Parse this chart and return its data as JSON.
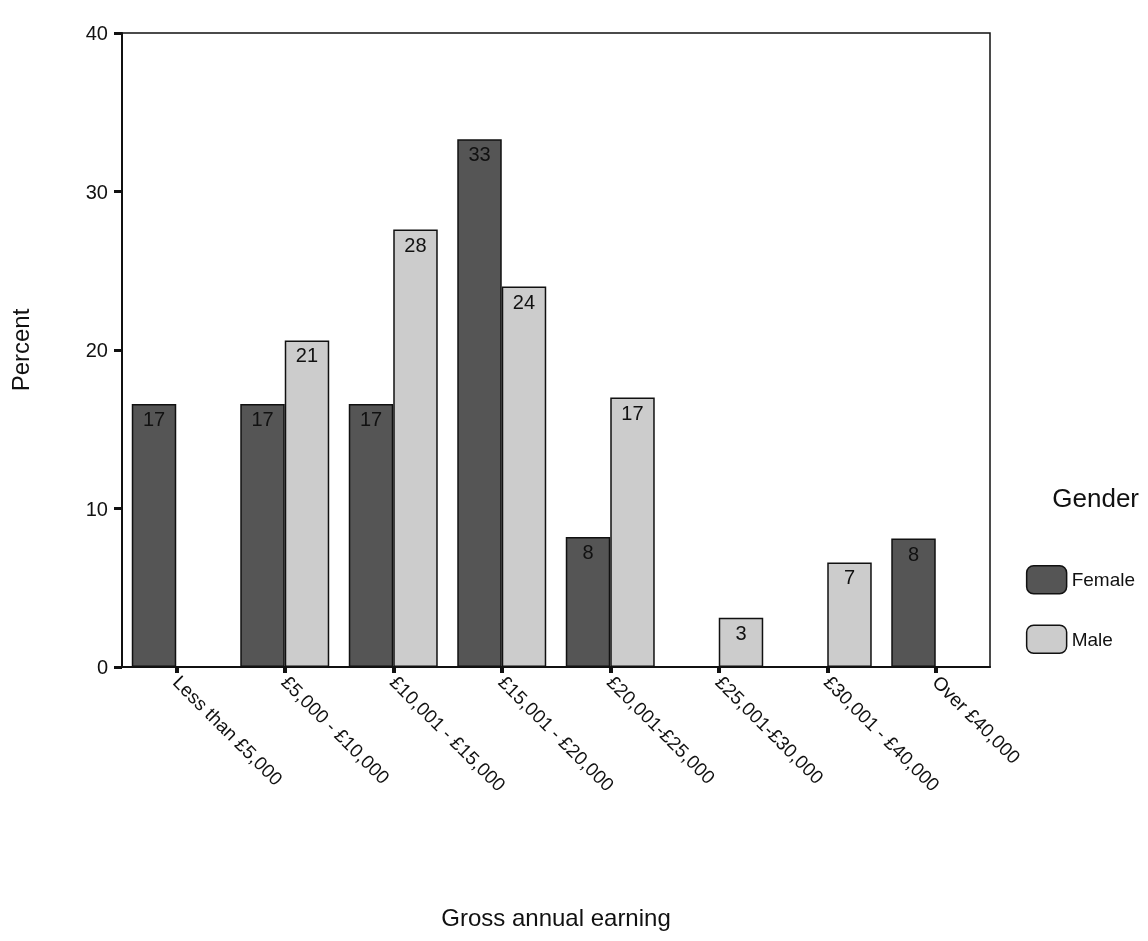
{
  "chart_data": {
    "type": "bar",
    "xlabel": "Gross annual earning",
    "ylabel": "Percent",
    "legend_title": "Gender",
    "categories": [
      "Less than £5,000",
      "£5,000 - £10,000",
      "£10,001 - £15,000",
      "£15,001 - £20,000",
      "£20,001-£25,000",
      "£25,001-£30,000",
      "£30,001 - £40,000",
      "Over £40,000"
    ],
    "series": [
      {
        "name": "Female",
        "color": "#555555",
        "values": [
          16.6,
          16.6,
          16.6,
          33.3,
          8.2,
          null,
          null,
          8.1
        ],
        "value_labels": [
          "17",
          "17",
          "17",
          "33",
          "8",
          null,
          null,
          "8"
        ]
      },
      {
        "name": "Male",
        "color": "#cccccc",
        "values": [
          null,
          20.6,
          27.6,
          24,
          17,
          3.1,
          6.6,
          null
        ],
        "value_labels": [
          null,
          "21",
          "28",
          "24",
          "17",
          "3",
          "7",
          null
        ]
      }
    ],
    "ylim": [
      0,
      40
    ],
    "yticks": [
      0,
      10,
      20,
      30,
      40
    ],
    "grid": false,
    "legend": "right"
  }
}
